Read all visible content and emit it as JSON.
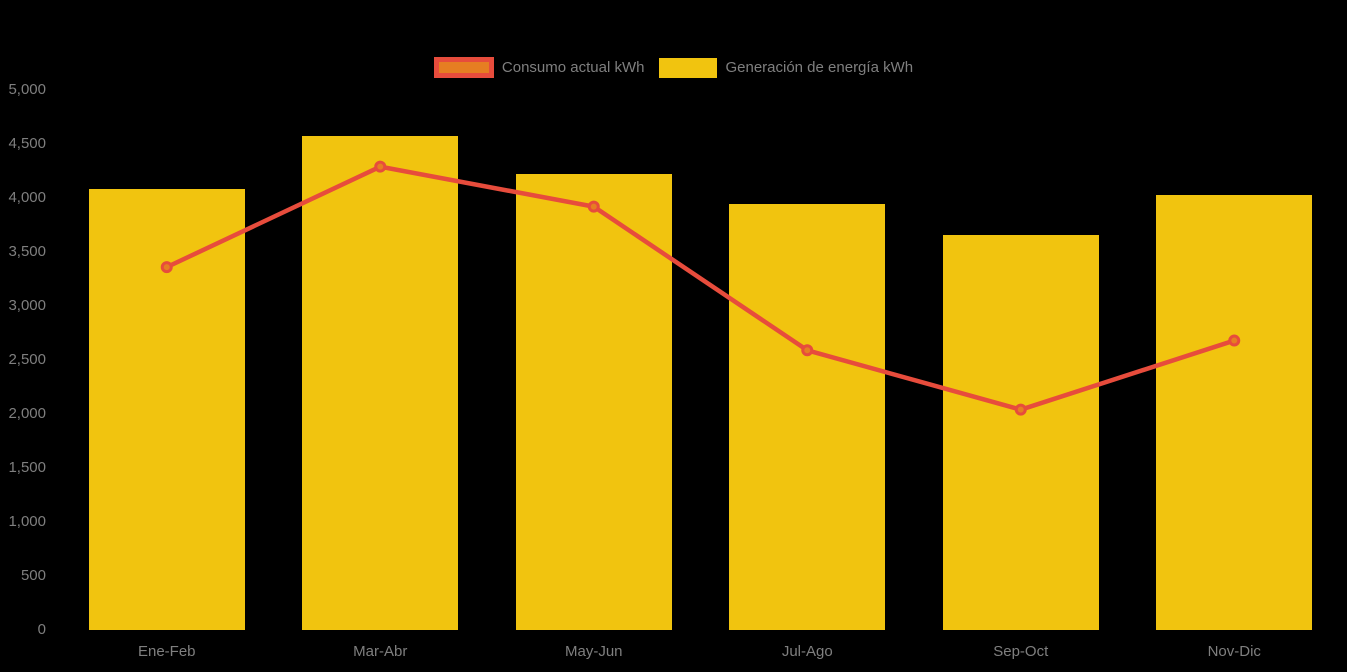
{
  "legend": [
    {
      "label": "Consumo actual kWh",
      "swatch_fill": "#e67e22",
      "swatch_border": "#e74c3c"
    },
    {
      "label": "Generación de energía kWh",
      "swatch_fill": "#f1c40f"
    }
  ],
  "colors": {
    "background": "#000000",
    "bar": "#f1c40f",
    "line": "#e74c3c",
    "marker_fill": "#e67e22",
    "axis_text": "#7f7f7f"
  },
  "chart_data": {
    "type": "combo",
    "categories": [
      "Ene-Feb",
      "Mar-Abr",
      "May-Jun",
      "Jul-Ago",
      "Sep-Oct",
      "Nov-Dic"
    ],
    "series": [
      {
        "name": "Consumo actual kWh",
        "type": "line",
        "color": "#e74c3c",
        "marker_fill": "#e67e22",
        "values": [
          3360,
          4290,
          3920,
          2590,
          2040,
          2680
        ]
      },
      {
        "name": "Generación de energía kWh",
        "type": "bar",
        "color": "#f1c40f",
        "values": [
          4080,
          4570,
          4220,
          3940,
          3660,
          4030
        ]
      }
    ],
    "title": "",
    "xlabel": "",
    "ylabel": "",
    "ylim": [
      0,
      5000
    ],
    "ytick_step": 500,
    "ytick_labels": [
      "0",
      "500",
      "1,000",
      "1,500",
      "2,000",
      "2,500",
      "3,000",
      "3,500",
      "4,000",
      "4,500",
      "5,000"
    ],
    "grid": false,
    "legend_position": "top"
  }
}
